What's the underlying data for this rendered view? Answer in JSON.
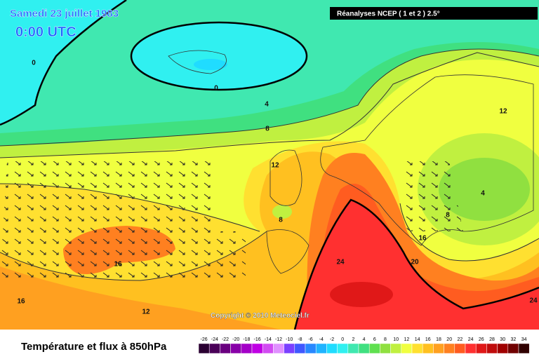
{
  "header": {
    "date": "Samedi 23 juillet 1983",
    "time": "0:00 UTC",
    "source": "Réanalyses NCEP ( 1 et 2 ) 2.5°"
  },
  "copyright": "Copyright © 2010 Meteociel.fr",
  "footer": {
    "title": "Température et flux à 850hPa"
  },
  "colorbar": {
    "ticks": [
      -26,
      -24,
      -22,
      -20,
      -18,
      -16,
      -14,
      -12,
      -10,
      -8,
      -6,
      -4,
      -2,
      0,
      2,
      4,
      6,
      8,
      10,
      12,
      14,
      16,
      18,
      20,
      22,
      24,
      26,
      28,
      30,
      32,
      34
    ],
    "colors": [
      "#2a0032",
      "#4a0058",
      "#6a0080",
      "#8800a8",
      "#a400c8",
      "#c000e4",
      "#d24cf2",
      "#e090ff",
      "#7a40ff",
      "#4058ff",
      "#2888ff",
      "#20b4ff",
      "#20dcff",
      "#30f0f0",
      "#40e8b0",
      "#40e080",
      "#60e050",
      "#90e040",
      "#c0f040",
      "#f0ff40",
      "#ffe030",
      "#ffc020",
      "#ffa020",
      "#ff8020",
      "#ff5c20",
      "#ff3030",
      "#e01818",
      "#c00c0c",
      "#a00000",
      "#700000",
      "#300000"
    ]
  },
  "contour_labels": [
    0,
    0,
    4,
    8,
    12,
    8,
    16,
    12,
    16,
    24,
    20,
    16,
    12,
    4,
    8,
    24
  ]
}
